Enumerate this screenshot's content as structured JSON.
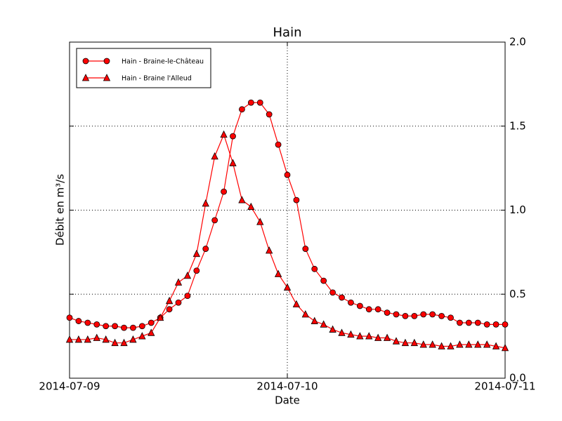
{
  "chart_data": {
    "type": "line",
    "title": "Hain",
    "x_label": "Date",
    "y_label": "Débit en m³/s",
    "x": [
      "2014-07-09T00:00",
      "2014-07-09T01:00",
      "2014-07-09T02:00",
      "2014-07-09T03:00",
      "2014-07-09T04:00",
      "2014-07-09T05:00",
      "2014-07-09T06:00",
      "2014-07-09T07:00",
      "2014-07-09T08:00",
      "2014-07-09T09:00",
      "2014-07-09T10:00",
      "2014-07-09T11:00",
      "2014-07-09T12:00",
      "2014-07-09T13:00",
      "2014-07-09T14:00",
      "2014-07-09T15:00",
      "2014-07-09T16:00",
      "2014-07-09T17:00",
      "2014-07-09T18:00",
      "2014-07-09T19:00",
      "2014-07-09T20:00",
      "2014-07-09T21:00",
      "2014-07-09T22:00",
      "2014-07-09T23:00",
      "2014-07-10T00:00",
      "2014-07-10T01:00",
      "2014-07-10T02:00",
      "2014-07-10T03:00",
      "2014-07-10T04:00",
      "2014-07-10T05:00",
      "2014-07-10T06:00",
      "2014-07-10T07:00",
      "2014-07-10T08:00",
      "2014-07-10T09:00",
      "2014-07-10T10:00",
      "2014-07-10T11:00",
      "2014-07-10T12:00",
      "2014-07-10T13:00",
      "2014-07-10T14:00",
      "2014-07-10T15:00",
      "2014-07-10T16:00",
      "2014-07-10T17:00",
      "2014-07-10T18:00",
      "2014-07-10T19:00",
      "2014-07-10T20:00",
      "2014-07-10T21:00",
      "2014-07-10T22:00",
      "2014-07-10T23:00",
      "2014-07-11T00:00"
    ],
    "series": [
      {
        "name": "Hain - Braine-le-Château",
        "color": "#ff0000",
        "marker": "circle",
        "values": [
          0.36,
          0.34,
          0.33,
          0.32,
          0.31,
          0.31,
          0.3,
          0.3,
          0.31,
          0.33,
          0.36,
          0.41,
          0.45,
          0.49,
          0.64,
          0.77,
          0.94,
          1.11,
          1.44,
          1.6,
          1.64,
          1.64,
          1.57,
          1.39,
          1.21,
          1.06,
          0.77,
          0.65,
          0.58,
          0.51,
          0.48,
          0.45,
          0.43,
          0.41,
          0.41,
          0.39,
          0.38,
          0.37,
          0.37,
          0.38,
          0.38,
          0.37,
          0.36,
          0.33,
          0.33,
          0.33,
          0.32,
          0.32,
          0.32
        ]
      },
      {
        "name": "Hain - Braine l'Alleud",
        "color": "#ff0000",
        "marker": "triangle",
        "values": [
          0.23,
          0.23,
          0.23,
          0.24,
          0.23,
          0.21,
          0.21,
          0.23,
          0.25,
          0.27,
          0.36,
          0.46,
          0.57,
          0.61,
          0.74,
          1.04,
          1.32,
          1.45,
          1.28,
          1.06,
          1.02,
          0.93,
          0.76,
          0.62,
          0.54,
          0.44,
          0.38,
          0.34,
          0.32,
          0.29,
          0.27,
          0.26,
          0.25,
          0.25,
          0.24,
          0.24,
          0.22,
          0.21,
          0.21,
          0.2,
          0.2,
          0.19,
          0.19,
          0.2,
          0.2,
          0.2,
          0.2,
          0.19,
          0.18
        ]
      }
    ],
    "xlim": [
      "2014-07-09T00:00",
      "2014-07-11T00:00"
    ],
    "xticks": [
      {
        "value": "2014-07-09T00:00",
        "label": "2014-07-09"
      },
      {
        "value": "2014-07-10T00:00",
        "label": "2014-07-10"
      },
      {
        "value": "2014-07-11T00:00",
        "label": "2014-07-11"
      }
    ],
    "ylim": [
      0,
      2
    ],
    "yticks": [
      {
        "value": 0,
        "label": "0.0"
      },
      {
        "value": 0.5,
        "label": "0.5"
      },
      {
        "value": 1,
        "label": "1.0"
      },
      {
        "value": 1.5,
        "label": "1.5"
      },
      {
        "value": 2,
        "label": "2.0"
      }
    ],
    "y_axis_side": "right",
    "grid": true,
    "legend": "upper left"
  }
}
